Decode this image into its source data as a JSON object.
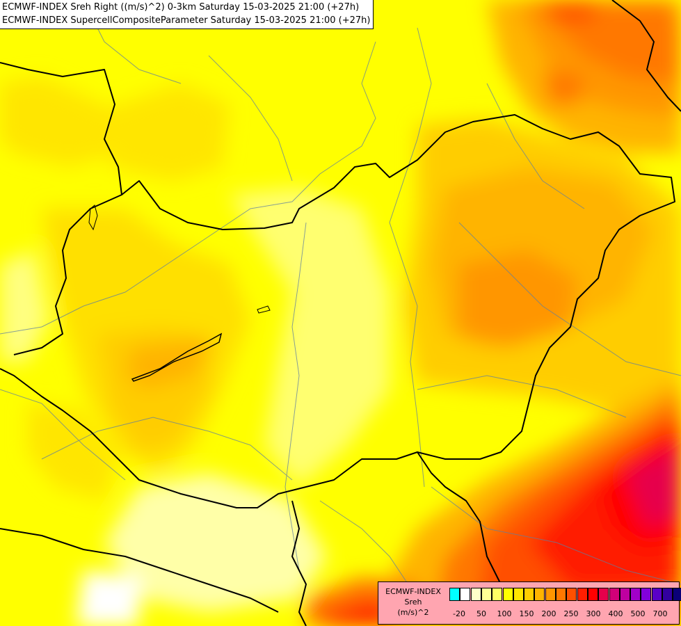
{
  "titles": {
    "line1": "ECMWF-INDEX Sreh Right ((m/s)^2) 0-3km Saturday 15-03-2025 21:00 (+27h)",
    "line2": "ECMWF-INDEX SupercellCompositeParameter Saturday 15-03-2025 21:00 (+27h)"
  },
  "legend": {
    "label_line1": "ECMWF-INDEX",
    "label_line2": "Sreh",
    "label_line3": "(m/s)^2",
    "colors": [
      "#00ffff",
      "#ffffff",
      "#ffffc8",
      "#ffff96",
      "#ffff64",
      "#ffff00",
      "#ffe600",
      "#ffcd00",
      "#ffb400",
      "#ff9600",
      "#ff7800",
      "#ff5000",
      "#ff1e00",
      "#ff0000",
      "#e6004b",
      "#d20078",
      "#be00a0",
      "#a000c8",
      "#8200dc",
      "#5a00c8",
      "#3200a0",
      "#0a0078"
    ],
    "ticks": [
      "-20",
      "50",
      "100",
      "150",
      "200",
      "250",
      "300",
      "400",
      "500",
      "700"
    ]
  }
}
